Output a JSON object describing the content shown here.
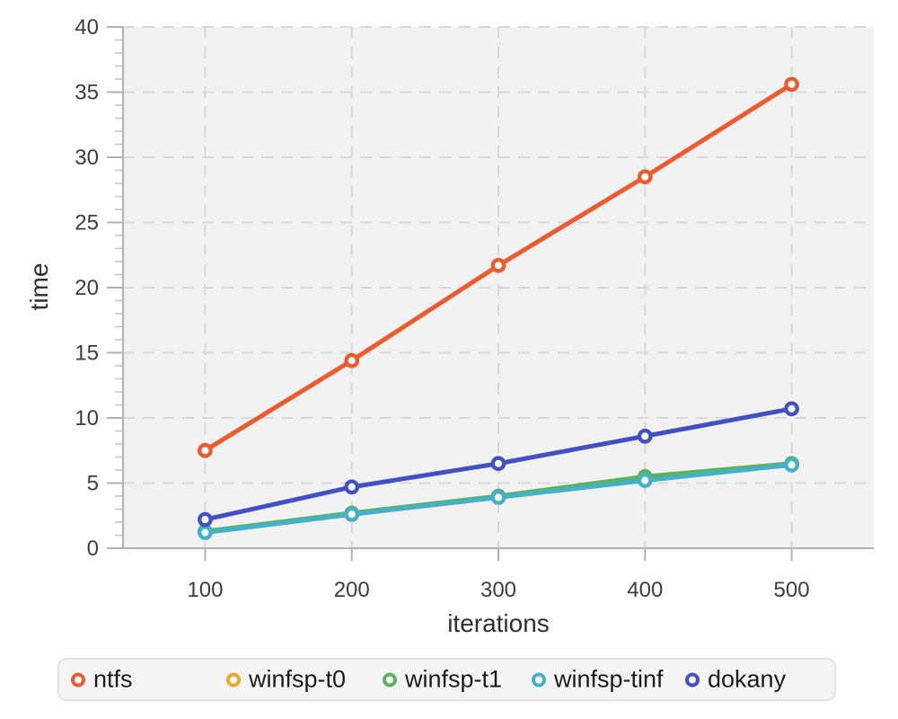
{
  "chart_data": {
    "type": "line",
    "title": "",
    "xlabel": "iterations",
    "ylabel": "time",
    "x": [
      100,
      200,
      300,
      400,
      500
    ],
    "xticks": [
      100,
      200,
      300,
      400,
      500
    ],
    "yticks": [
      0,
      5,
      10,
      15,
      20,
      25,
      30,
      35,
      40
    ],
    "xlim": [
      44,
      556
    ],
    "ylim": [
      0,
      40
    ],
    "y_minor_tick_step": 1,
    "grid": "dashed",
    "legend_position": "bottom",
    "marker_style": "open-circle",
    "series": [
      {
        "name": "ntfs",
        "color": "#ec5a2d",
        "values": [
          7.5,
          14.4,
          21.7,
          28.5,
          35.6
        ]
      },
      {
        "name": "winfsp-t0",
        "color": "#f4a42c",
        "values": [
          1.3,
          2.6,
          3.9,
          5.3,
          6.4
        ]
      },
      {
        "name": "winfsp-t1",
        "color": "#5bb35c",
        "values": [
          1.3,
          2.7,
          4.0,
          5.5,
          6.5
        ]
      },
      {
        "name": "winfsp-tinf",
        "color": "#44b1c8",
        "values": [
          1.2,
          2.6,
          3.9,
          5.2,
          6.4
        ]
      },
      {
        "name": "dokany",
        "color": "#4250c4",
        "values": [
          2.2,
          4.7,
          6.5,
          8.6,
          10.7
        ]
      }
    ]
  },
  "colors": {
    "page_bg": "#ffffff",
    "plot_bg": "#f2f2f2",
    "grid": "#d9d9d9",
    "axis": "#b2b2b2",
    "minor_tick": "#c6c6c6",
    "tick_label": "#3d3d3d",
    "axis_title": "#2f2f2f",
    "legend_bg": "#f5f5f6",
    "legend_border": "#e2e2e4",
    "legend_text": "#1b1b1b"
  }
}
